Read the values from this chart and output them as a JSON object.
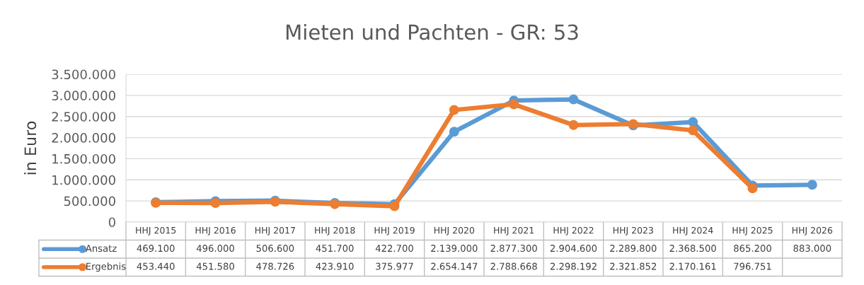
{
  "chart_data": {
    "type": "line",
    "title": "Mieten und Pachten - GR: 53",
    "ylabel": "in Euro",
    "categories": [
      "HHJ 2015",
      "HHJ 2016",
      "HHJ 2017",
      "HHJ 2018",
      "HHJ 2019",
      "HHJ 2020",
      "HHJ 2021",
      "HHJ 2022",
      "HHJ 2023",
      "HHJ 2024",
      "HHJ 2025",
      "HHJ 2026"
    ],
    "series": [
      {
        "name": "Ansatz",
        "color": "#5b9bd5",
        "values": [
          469100,
          496000,
          506600,
          451700,
          422700,
          2139000,
          2877300,
          2904600,
          2289800,
          2368500,
          865200,
          883000
        ],
        "value_labels": [
          "469.100",
          "496.000",
          "506.600",
          "451.700",
          "422.700",
          "2.139.000",
          "2.877.300",
          "2.904.600",
          "2.289.800",
          "2.368.500",
          "865.200",
          "883.000"
        ]
      },
      {
        "name": "Ergebnis",
        "color": "#ed7d31",
        "values": [
          453440,
          451580,
          478726,
          423910,
          375977,
          2654147,
          2788668,
          2298192,
          2321852,
          2170161,
          796751,
          null
        ],
        "value_labels": [
          "453.440",
          "451.580",
          "478.726",
          "423.910",
          "375.977",
          "2.654.147",
          "2.788.668",
          "2.298.192",
          "2.321.852",
          "2.170.161",
          "796.751",
          null
        ]
      }
    ],
    "ylim": [
      0,
      3500000
    ],
    "yticks": [
      0,
      {
        "value": 500000,
        "label": "500.000"
      },
      {
        "value": 1000000,
        "label": "1.000.000"
      },
      {
        "value": 1500000,
        "label": "1.500.000"
      },
      {
        "value": 2000000,
        "label": "2.000.000"
      },
      {
        "value": 2500000,
        "label": "2.500.000"
      },
      {
        "value": 3000000,
        "label": "3.000.000"
      },
      {
        "value": 3500000,
        "label": "3.500.000"
      }
    ],
    "grid": "y",
    "legend": "bottom",
    "marker": "circle",
    "line_style": "solid"
  }
}
